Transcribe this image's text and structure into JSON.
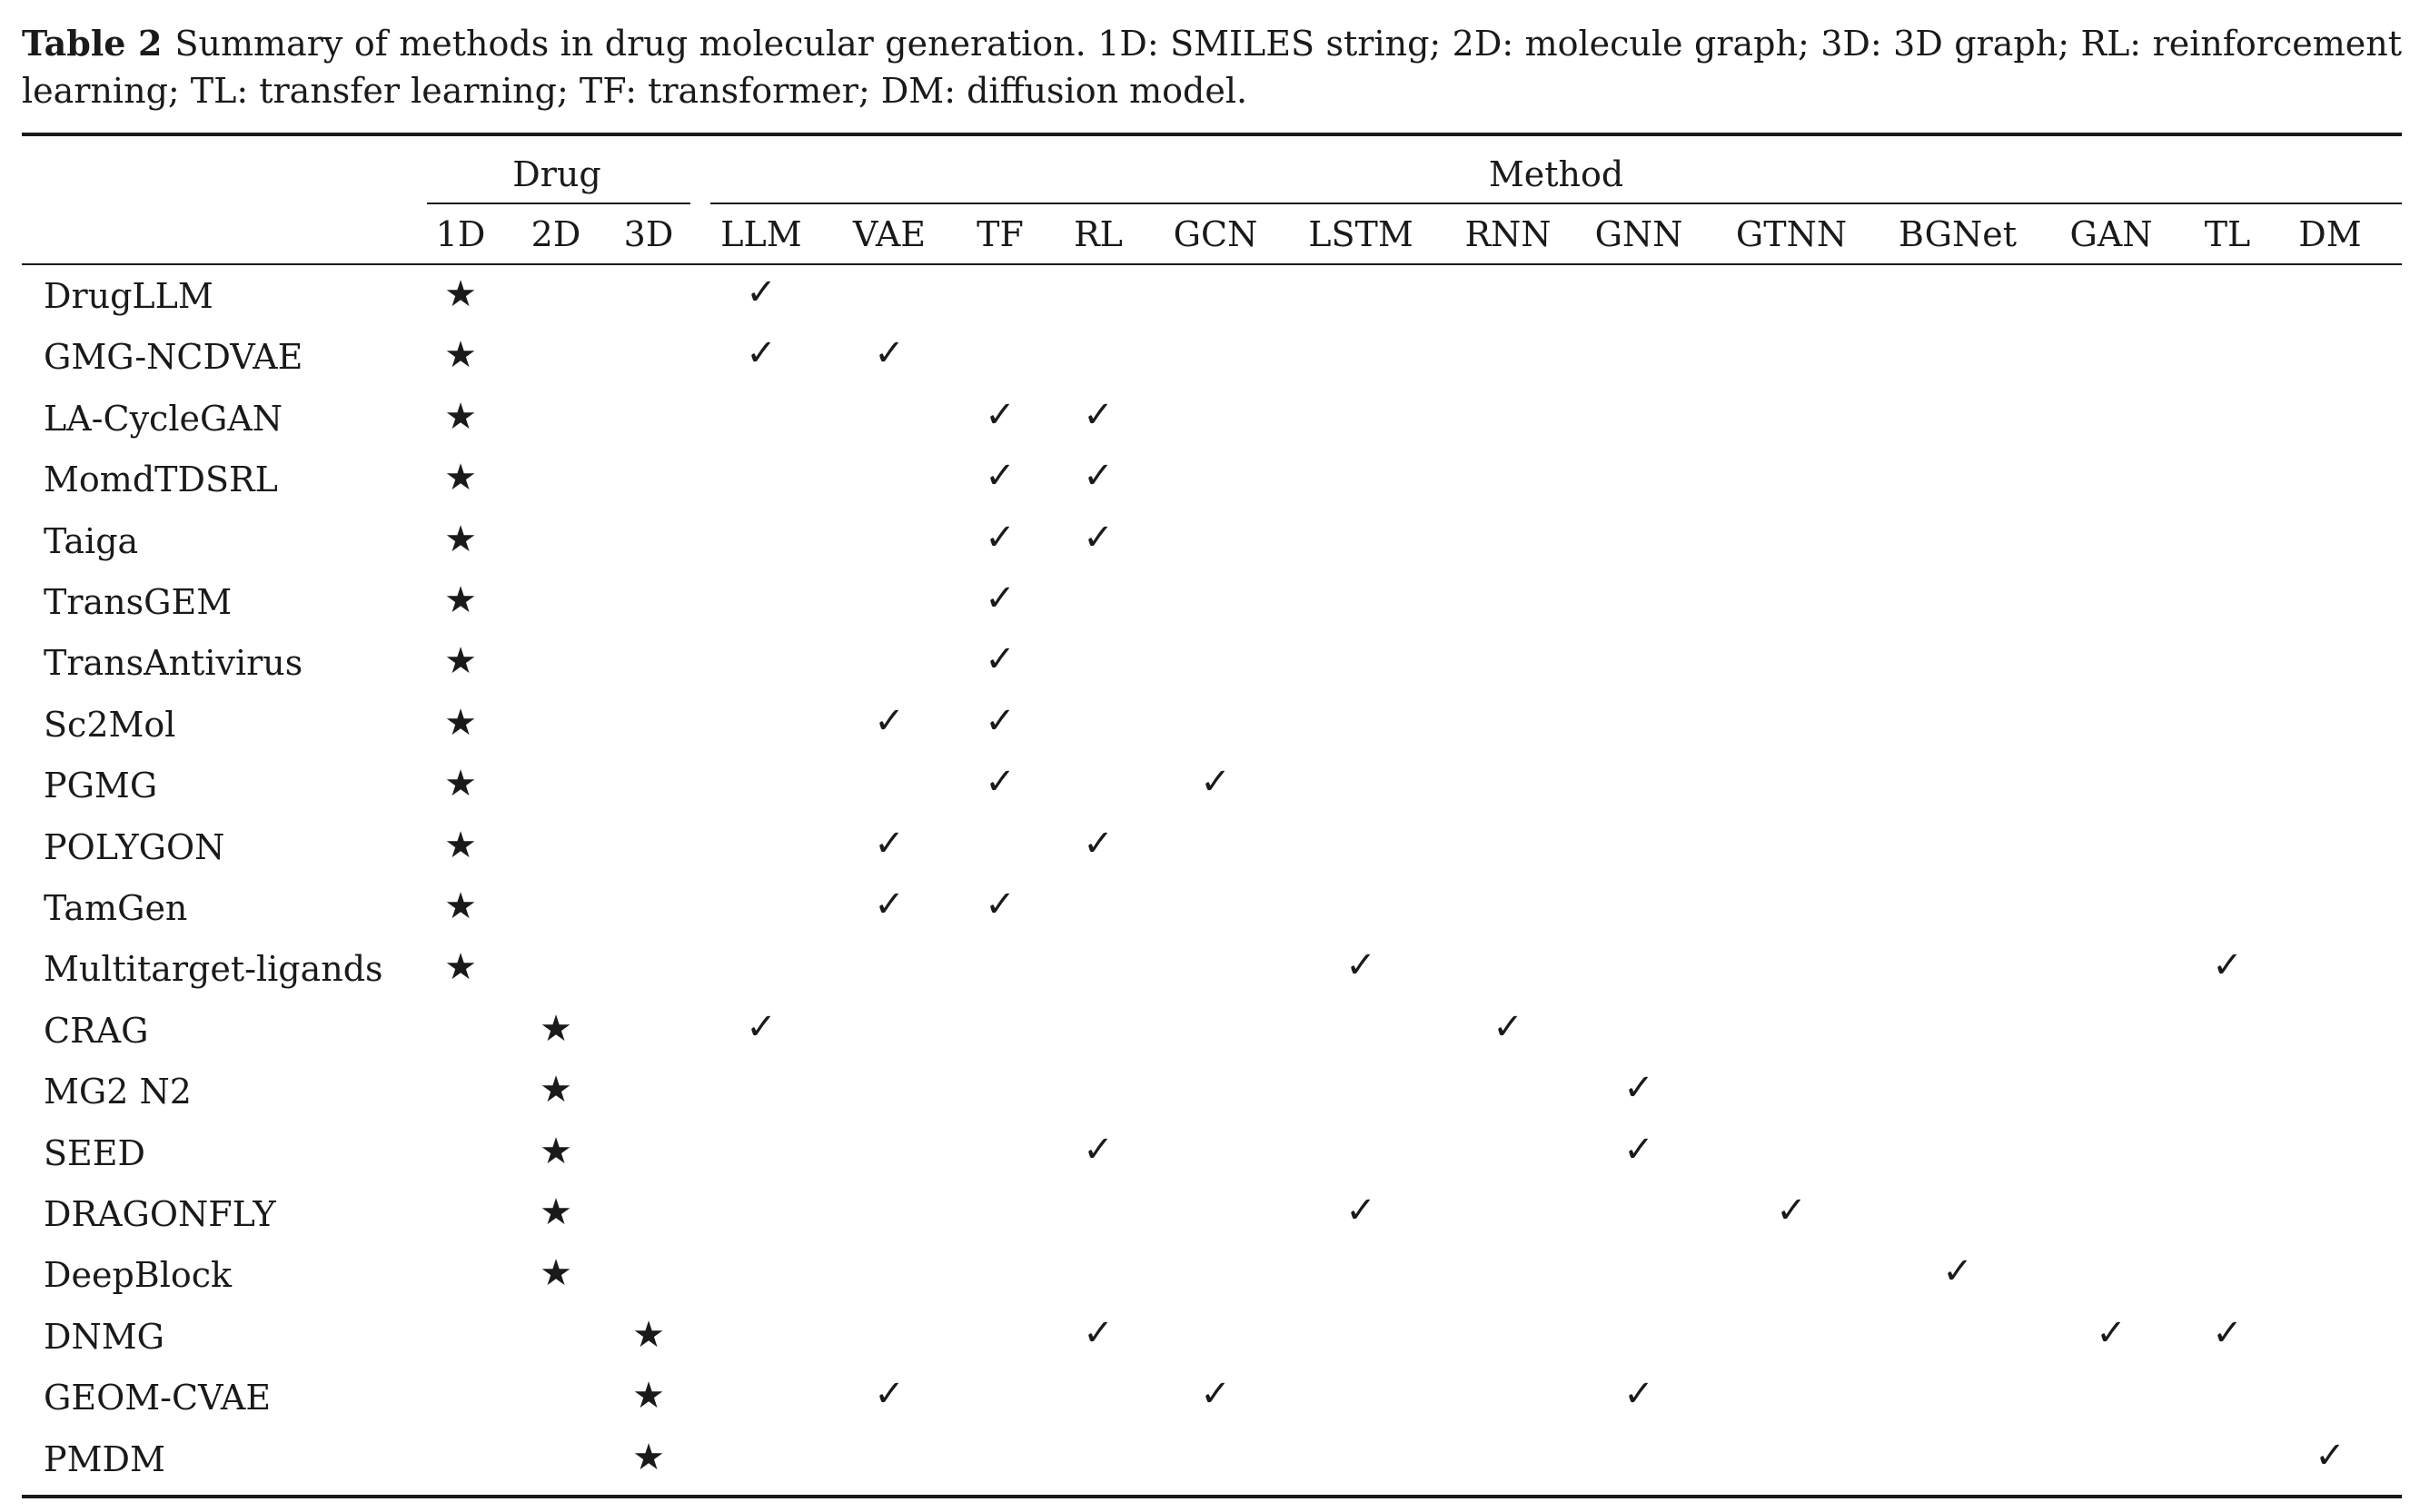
{
  "caption": {
    "label": "Table 2",
    "text": "Summary of methods in drug molecular generation. 1D: SMILES string; 2D: molecule graph; 3D: 3D graph; RL: reinforcement learning; TL: transfer learning; TF: transformer; DM: diffusion model."
  },
  "table": {
    "group_headers": {
      "drug": "Drug",
      "method": "Method"
    },
    "drug_columns": [
      "1D",
      "2D",
      "3D"
    ],
    "method_columns": [
      "LLM",
      "VAE",
      "TF",
      "RL",
      "GCN",
      "LSTM",
      "RNN",
      "GNN",
      "GTNN",
      "BGNet",
      "GAN",
      "TL",
      "DM"
    ],
    "star_symbol": "★",
    "check_symbol": "✓",
    "rows": [
      {
        "name": "DrugLLM",
        "drug": "1D",
        "methods": [
          "LLM"
        ]
      },
      {
        "name": "GMG-NCDVAE",
        "drug": "1D",
        "methods": [
          "LLM",
          "VAE"
        ]
      },
      {
        "name": "LA-CycleGAN",
        "drug": "1D",
        "methods": [
          "TF",
          "RL"
        ]
      },
      {
        "name": "MomdTDSRL",
        "drug": "1D",
        "methods": [
          "TF",
          "RL"
        ]
      },
      {
        "name": "Taiga",
        "drug": "1D",
        "methods": [
          "TF",
          "RL"
        ]
      },
      {
        "name": "TransGEM",
        "drug": "1D",
        "methods": [
          "TF"
        ]
      },
      {
        "name": "TransAntivirus",
        "drug": "1D",
        "methods": [
          "TF"
        ]
      },
      {
        "name": "Sc2Mol",
        "drug": "1D",
        "methods": [
          "VAE",
          "TF"
        ]
      },
      {
        "name": "PGMG",
        "drug": "1D",
        "methods": [
          "TF",
          "GCN"
        ]
      },
      {
        "name": "POLYGON",
        "drug": "1D",
        "methods": [
          "VAE",
          "RL"
        ]
      },
      {
        "name": "TamGen",
        "drug": "1D",
        "methods": [
          "VAE",
          "TF"
        ]
      },
      {
        "name": "Multitarget-ligands",
        "drug": "1D",
        "methods": [
          "LSTM",
          "TL"
        ]
      },
      {
        "name": "CRAG",
        "drug": "2D",
        "methods": [
          "LLM",
          "RNN"
        ]
      },
      {
        "name": "MG2 N2",
        "drug": "2D",
        "methods": [
          "GNN"
        ]
      },
      {
        "name": "SEED",
        "drug": "2D",
        "methods": [
          "RL",
          "GNN"
        ]
      },
      {
        "name": "DRAGONFLY",
        "drug": "2D",
        "methods": [
          "LSTM",
          "GTNN"
        ]
      },
      {
        "name": "DeepBlock",
        "drug": "2D",
        "methods": [
          "BGNet"
        ]
      },
      {
        "name": "DNMG",
        "drug": "3D",
        "methods": [
          "RL",
          "GAN",
          "TL"
        ]
      },
      {
        "name": "GEOM-CVAE",
        "drug": "3D",
        "methods": [
          "VAE",
          "GCN",
          "GNN"
        ]
      },
      {
        "name": "PMDM",
        "drug": "3D",
        "methods": [
          "DM"
        ]
      }
    ]
  }
}
